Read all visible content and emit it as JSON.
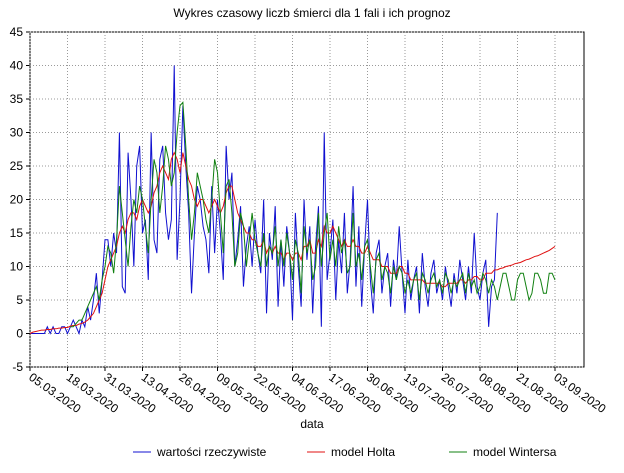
{
  "chart_data": {
    "type": "line",
    "title": "Wykres czasowy liczb śmierci dla 1 fali i ich prognoz",
    "x_label": "data",
    "categories": [
      "05.03.2020",
      null,
      null,
      null,
      null,
      null,
      null,
      null,
      null,
      null,
      null,
      null,
      null,
      "18.03.2020",
      null,
      null,
      null,
      null,
      null,
      null,
      null,
      null,
      null,
      null,
      null,
      null,
      "31.03.2020",
      null,
      null,
      null,
      null,
      null,
      null,
      null,
      null,
      null,
      null,
      null,
      null,
      "13.04.2020",
      null,
      null,
      null,
      null,
      null,
      null,
      null,
      null,
      null,
      null,
      null,
      null,
      "26.04.2020",
      null,
      null,
      null,
      null,
      null,
      null,
      null,
      null,
      null,
      null,
      null,
      null,
      "09.05.2020",
      null,
      null,
      null,
      null,
      null,
      null,
      null,
      null,
      null,
      null,
      null,
      null,
      "22.05.2020",
      null,
      null,
      null,
      null,
      null,
      null,
      null,
      null,
      null,
      null,
      null,
      null,
      "04.06.2020",
      null,
      null,
      null,
      null,
      null,
      null,
      null,
      null,
      null,
      null,
      null,
      null,
      "17.06.2020",
      null,
      null,
      null,
      null,
      null,
      null,
      null,
      null,
      null,
      null,
      null,
      null,
      "30.06.2020",
      null,
      null,
      null,
      null,
      null,
      null,
      null,
      null,
      null,
      null,
      null,
      null,
      "13.07.2020",
      null,
      null,
      null,
      null,
      null,
      null,
      null,
      null,
      null,
      null,
      null,
      null,
      "26.07.2020",
      null,
      null,
      null,
      null,
      null,
      null,
      null,
      null,
      null,
      null,
      null,
      null,
      "08.08.2020",
      null,
      null,
      null,
      null,
      null,
      null,
      null,
      null,
      null,
      null,
      null,
      null,
      "21.08.2020",
      null,
      null,
      null,
      null,
      null,
      null,
      null,
      null,
      null,
      null,
      null,
      null,
      "03.09.2020"
    ],
    "series": [
      {
        "name": "wartości rzeczywiste",
        "color": "#1010d0",
        "values": [
          0,
          0,
          0,
          0,
          0,
          0,
          1,
          0,
          1,
          0,
          0,
          1,
          1,
          0,
          1,
          2,
          1,
          0,
          2,
          1,
          4,
          2,
          5,
          9,
          3,
          8,
          14,
          14,
          10,
          15,
          12,
          30,
          7,
          6,
          27,
          20,
          10,
          25,
          28,
          15,
          17,
          8,
          30,
          14,
          12,
          26,
          28,
          18,
          14,
          17,
          40,
          11,
          20,
          34,
          25,
          18,
          6,
          15,
          22,
          20,
          16,
          14,
          9,
          22,
          12,
          20,
          15,
          8,
          28,
          20,
          24,
          10,
          14,
          19,
          7,
          13,
          16,
          10,
          17,
          12,
          9,
          20,
          3,
          15,
          11,
          19,
          4,
          14,
          7,
          16,
          12,
          2,
          18,
          10,
          4,
          20,
          11,
          16,
          3,
          13,
          19,
          1,
          30,
          8,
          12,
          17,
          5,
          14,
          9,
          18,
          6,
          11,
          22,
          7,
          16,
          4,
          13,
          20,
          8,
          3,
          12,
          14,
          6,
          10,
          12,
          4,
          11,
          8,
          16,
          9,
          3,
          11,
          5,
          8,
          10,
          3,
          12,
          7,
          4,
          9,
          11,
          6,
          8,
          5,
          10,
          7,
          4,
          9,
          6,
          11,
          8,
          5,
          10,
          6,
          15,
          7,
          5,
          9,
          11,
          1,
          7,
          8,
          18,
          null,
          null,
          null,
          null,
          null,
          null,
          null,
          null,
          null,
          null,
          null,
          null,
          null,
          null,
          null,
          null,
          null,
          null,
          null,
          null
        ]
      },
      {
        "name": "model Holta",
        "color": "#e01010",
        "values": [
          0,
          0.2,
          0.3,
          0.4,
          0.5,
          0.5,
          0.6,
          0.6,
          0.7,
          0.7,
          0.8,
          0.8,
          0.9,
          0.9,
          1.1,
          1.2,
          1.2,
          1.4,
          1.5,
          1.7,
          2,
          2.5,
          3,
          4,
          5,
          6,
          8,
          10,
          11,
          12,
          13,
          15,
          16,
          15,
          17,
          18,
          18,
          17,
          19,
          20,
          19,
          18,
          19,
          21,
          22,
          24,
          25,
          24,
          23,
          26,
          27,
          26,
          24,
          27,
          25,
          23,
          22,
          20,
          19,
          20,
          20,
          19,
          18,
          19,
          20,
          19,
          18,
          19,
          21,
          22,
          22,
          20,
          18,
          17,
          16,
          15,
          15,
          14,
          14,
          13,
          13,
          14,
          12,
          13,
          12,
          13,
          12,
          12,
          11,
          12,
          12,
          11,
          12,
          12,
          11,
          13,
          13,
          14,
          12,
          12,
          14,
          13,
          16,
          15,
          15,
          16,
          15,
          14,
          13,
          14,
          13,
          13,
          14,
          13,
          13,
          12,
          12,
          13,
          12,
          11,
          11,
          11,
          10,
          10,
          10,
          9,
          9,
          9,
          10,
          10,
          9,
          9,
          8,
          8,
          8,
          8,
          8,
          7.5,
          7.5,
          7.5,
          7.5,
          7.5,
          7.5,
          7,
          7,
          7.5,
          7.5,
          7.5,
          7.5,
          8,
          8,
          7.5,
          8,
          8,
          8.5,
          8.5,
          8,
          8,
          9,
          9,
          9,
          9.5,
          9.5,
          9.7,
          9.8,
          10,
          10.1,
          10.2,
          10.4,
          10.5,
          10.6,
          10.8,
          11,
          11.1,
          11.3,
          11.5,
          11.6,
          11.8,
          12,
          12.2,
          12.4,
          12.7,
          13
        ]
      },
      {
        "name": "model Wintersa",
        "color": "#108010",
        "values": [
          null,
          null,
          null,
          null,
          null,
          null,
          null,
          null,
          null,
          null,
          null,
          null,
          null,
          null,
          1,
          1,
          1.5,
          2,
          2,
          3,
          4,
          5,
          6,
          7,
          5,
          8,
          10,
          13,
          12,
          9,
          14,
          22,
          18,
          14,
          10,
          16,
          20,
          18,
          22,
          20,
          16,
          12,
          20,
          26,
          24,
          18,
          22,
          28,
          26,
          22,
          24,
          30,
          34,
          34.5,
          28,
          20,
          14,
          18,
          24,
          22,
          20,
          17,
          15,
          20,
          26,
          24,
          18,
          12,
          22,
          23,
          18,
          10,
          12,
          18,
          16,
          10,
          14,
          18,
          14,
          12,
          10,
          15,
          10,
          13,
          12,
          16,
          10,
          14,
          10,
          15,
          12,
          8,
          14,
          12,
          6,
          16,
          12,
          14,
          8,
          10,
          18,
          10,
          15,
          18,
          11,
          14,
          10,
          16,
          12,
          14,
          9,
          10,
          18,
          10,
          12,
          8,
          13,
          14,
          10,
          6,
          11,
          12,
          8,
          10,
          9,
          6,
          10,
          8,
          10,
          9,
          6,
          8,
          6,
          8,
          9,
          5,
          9,
          8,
          6,
          8,
          9,
          7,
          8,
          6,
          9,
          8,
          6,
          8,
          7,
          8,
          9,
          6,
          9,
          7,
          8,
          6,
          7,
          9,
          8,
          6,
          8,
          7,
          5,
          7,
          9,
          9,
          7,
          5,
          5,
          8,
          9,
          9,
          7,
          5,
          6,
          9,
          9,
          8,
          6,
          6,
          9,
          9,
          8
        ]
      }
    ],
    "ylim": [
      -5,
      45
    ],
    "yticks": [
      -5,
      0,
      5,
      10,
      15,
      20,
      25,
      30,
      35,
      40,
      45
    ],
    "grid": true,
    "legend": "bottom"
  }
}
